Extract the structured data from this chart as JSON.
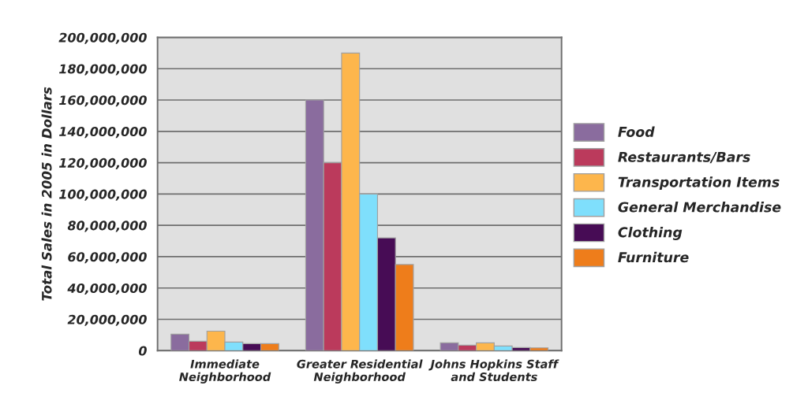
{
  "chart_data": {
    "type": "bar",
    "ylabel": "Total Sales in 2005 in Dollars",
    "categories": [
      "Immediate\nNeighborhood",
      "Greater Residential\nNeighborhood",
      "Johns Hopkins Staff\nand Students"
    ],
    "series": [
      {
        "name": "Food",
        "color": "#8a6c9e",
        "values": [
          10500000,
          160000000,
          5000000
        ]
      },
      {
        "name": "Restaurants/Bars",
        "color": "#bb3a5c",
        "values": [
          6000000,
          120000000,
          3500000
        ]
      },
      {
        "name": "Transportation Items",
        "color": "#fdb64c",
        "values": [
          12500000,
          190000000,
          5000000
        ]
      },
      {
        "name": "General Merchandise",
        "color": "#7fdffc",
        "values": [
          5500000,
          100000000,
          3000000
        ]
      },
      {
        "name": "Clothing",
        "color": "#470c55",
        "values": [
          4500000,
          72000000,
          2000000
        ]
      },
      {
        "name": "Furniture",
        "color": "#ee7d1b",
        "values": [
          4500000,
          55000000,
          1800000
        ]
      }
    ],
    "ylim": [
      0,
      200000000
    ],
    "yticks": [
      0,
      {
        "value": 20000000,
        "label": "20,000,000"
      },
      {
        "value": 40000000,
        "label": "40,000,000"
      },
      {
        "value": 60000000,
        "label": "60,000,000"
      },
      {
        "value": 80000000,
        "label": "80,000,000"
      },
      {
        "value": 100000000,
        "label": "100,000,000"
      },
      {
        "value": 120000000,
        "label": "120,000,000"
      },
      {
        "value": 140000000,
        "label": "140,000,000"
      },
      {
        "value": 160000000,
        "label": "160,000,000"
      },
      {
        "value": 180000000,
        "label": "180,000,000"
      },
      {
        "value": 200000000,
        "label": "200,000,000"
      }
    ],
    "grid": "y",
    "legend": "right"
  }
}
